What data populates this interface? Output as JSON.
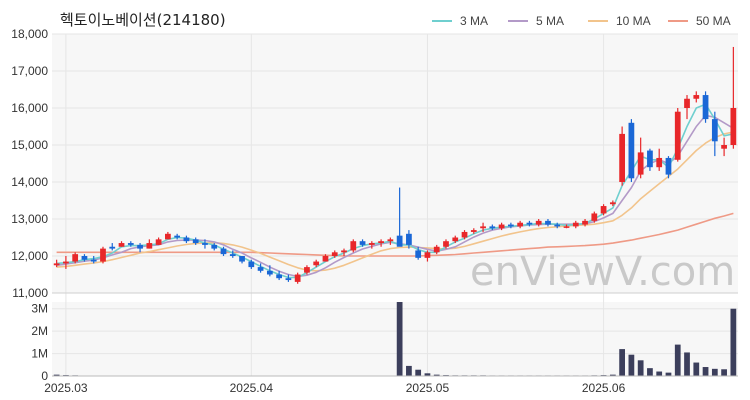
{
  "chart_data": {
    "type": "candlestick",
    "title": "헥토이노베이션(214180)",
    "watermark": "enViewV.com",
    "price_axis": {
      "ylim": [
        11000,
        18000
      ],
      "ticks": [
        "11,000",
        "12,000",
        "13,000",
        "14,000",
        "15,000",
        "16,000",
        "17,000",
        "18,000"
      ]
    },
    "volume_axis": {
      "ylim": [
        0,
        3300000
      ],
      "ticks": [
        "0",
        "1M",
        "2M",
        "3M"
      ]
    },
    "x_ticks": [
      {
        "label": "2025.03",
        "index": 1
      },
      {
        "label": "2025.04",
        "index": 21
      },
      {
        "label": "2025.05",
        "index": 40
      },
      {
        "label": "2025.06",
        "index": 59
      }
    ],
    "legend": [
      {
        "name": "3 MA",
        "color": "#6fcfcf"
      },
      {
        "name": "5 MA",
        "color": "#b39ac8"
      },
      {
        "name": "10 MA",
        "color": "#f2c48c"
      },
      {
        "name": "50 MA",
        "color": "#ef9a86"
      }
    ],
    "colors": {
      "up": "#e8272a",
      "down": "#1a67d6",
      "volume": "#3c3f5c",
      "grid": "#e6e6e6",
      "plot_bg": "#f7f7f7"
    },
    "candles": [
      [
        11750,
        11900,
        11700,
        11800
      ],
      [
        11800,
        12000,
        11650,
        11850
      ],
      [
        11850,
        12100,
        11800,
        12050
      ],
      [
        12000,
        12050,
        11850,
        11900
      ],
      [
        11900,
        12000,
        11800,
        11850
      ],
      [
        11850,
        12250,
        11800,
        12200
      ],
      [
        12250,
        12350,
        12150,
        12200
      ],
      [
        12250,
        12400,
        12250,
        12350
      ],
      [
        12350,
        12400,
        12250,
        12300
      ],
      [
        12300,
        12350,
        12100,
        12200
      ],
      [
        12200,
        12450,
        12200,
        12350
      ],
      [
        12300,
        12500,
        12300,
        12450
      ],
      [
        12450,
        12650,
        12450,
        12600
      ],
      [
        12550,
        12600,
        12450,
        12500
      ],
      [
        12500,
        12550,
        12350,
        12400
      ],
      [
        12450,
        12500,
        12300,
        12350
      ],
      [
        12350,
        12450,
        12200,
        12300
      ],
      [
        12300,
        12350,
        12150,
        12200
      ],
      [
        12200,
        12250,
        12000,
        12050
      ],
      [
        12050,
        12150,
        11950,
        12000
      ],
      [
        12000,
        12000,
        11800,
        11850
      ],
      [
        11850,
        11900,
        11650,
        11700
      ],
      [
        11700,
        11800,
        11550,
        11600
      ],
      [
        11600,
        11750,
        11450,
        11500
      ],
      [
        11500,
        11600,
        11350,
        11400
      ],
      [
        11400,
        11500,
        11300,
        11350
      ],
      [
        11300,
        11550,
        11250,
        11500
      ],
      [
        11550,
        11750,
        11500,
        11700
      ],
      [
        11750,
        11900,
        11700,
        11850
      ],
      [
        11850,
        12050,
        11850,
        12000
      ],
      [
        12000,
        12150,
        11950,
        12100
      ],
      [
        12100,
        12200,
        12000,
        12150
      ],
      [
        12150,
        12450,
        12100,
        12400
      ],
      [
        12400,
        12450,
        12250,
        12300
      ],
      [
        12300,
        12400,
        12200,
        12350
      ],
      [
        12350,
        12450,
        12250,
        12400
      ],
      [
        12400,
        12500,
        12300,
        12450
      ],
      [
        12550,
        13850,
        12300,
        12250
      ],
      [
        12600,
        12700,
        12200,
        12300
      ],
      [
        12150,
        12250,
        11900,
        11950
      ],
      [
        11950,
        12150,
        11850,
        12100
      ],
      [
        12100,
        12300,
        12050,
        12250
      ],
      [
        12250,
        12450,
        12200,
        12400
      ],
      [
        12400,
        12550,
        12350,
        12500
      ],
      [
        12500,
        12700,
        12450,
        12650
      ],
      [
        12650,
        12750,
        12600,
        12700
      ],
      [
        12750,
        12900,
        12650,
        12800
      ],
      [
        12800,
        12850,
        12700,
        12750
      ],
      [
        12750,
        12900,
        12700,
        12850
      ],
      [
        12850,
        12900,
        12750,
        12800
      ],
      [
        12800,
        12950,
        12750,
        12900
      ],
      [
        12900,
        12950,
        12800,
        12850
      ],
      [
        12850,
        13000,
        12800,
        12950
      ],
      [
        12950,
        13000,
        12800,
        12850
      ],
      [
        12850,
        12900,
        12750,
        12800
      ],
      [
        12800,
        12850,
        12750,
        12800
      ],
      [
        12800,
        12950,
        12750,
        12900
      ],
      [
        12850,
        13000,
        12800,
        12950
      ],
      [
        12950,
        13200,
        12900,
        13150
      ],
      [
        13150,
        13400,
        13100,
        13350
      ],
      [
        13400,
        13500,
        13350,
        13450
      ],
      [
        14000,
        15500,
        13900,
        15300
      ],
      [
        15600,
        15700,
        14000,
        14100
      ],
      [
        14200,
        15200,
        14100,
        14800
      ],
      [
        14850,
        14900,
        14300,
        14400
      ],
      [
        14400,
        14900,
        14300,
        14650
      ],
      [
        14650,
        14700,
        14100,
        14200
      ],
      [
        14600,
        16000,
        14550,
        15900
      ],
      [
        16000,
        16350,
        15700,
        16250
      ],
      [
        16250,
        16450,
        16150,
        16350
      ],
      [
        16350,
        16450,
        15600,
        15700
      ],
      [
        15700,
        15900,
        14700,
        15100
      ],
      [
        14900,
        15200,
        14700,
        15000
      ],
      [
        15000,
        17650,
        14900,
        16000
      ]
    ],
    "ma3": [
      11800,
      11820,
      11850,
      11900,
      11930,
      11980,
      12080,
      12250,
      12280,
      12280,
      12300,
      12330,
      12450,
      12500,
      12480,
      12430,
      12350,
      12300,
      12180,
      12080,
      11970,
      11850,
      11720,
      11600,
      11500,
      11420,
      11420,
      11550,
      11700,
      11850,
      11980,
      12080,
      12200,
      12280,
      12330,
      12350,
      12400,
      12300,
      12300,
      12170,
      12100,
      12100,
      12250,
      12380,
      12480,
      12600,
      12700,
      12750,
      12780,
      12800,
      12830,
      12850,
      12880,
      12870,
      12860,
      12830,
      12850,
      12880,
      13000,
      13150,
      13300,
      13900,
      14300,
      14700,
      14600,
      14600,
      14400,
      14900,
      15500,
      16000,
      16100,
      15700,
      15250,
      15300
    ],
    "ma5": [
      11750,
      11780,
      11820,
      11860,
      11890,
      11950,
      12030,
      12100,
      12200,
      12250,
      12280,
      12300,
      12380,
      12420,
      12430,
      12430,
      12420,
      12380,
      12300,
      12180,
      12080,
      11950,
      11830,
      11700,
      11590,
      11500,
      11450,
      11480,
      11560,
      11680,
      11830,
      11960,
      12080,
      12190,
      12260,
      12330,
      12370,
      12330,
      12300,
      12240,
      12180,
      12130,
      12180,
      12250,
      12380,
      12510,
      12620,
      12700,
      12750,
      12790,
      12810,
      12840,
      12850,
      12860,
      12860,
      12860,
      12860,
      12870,
      12930,
      13030,
      13150,
      13500,
      13850,
      14300,
      14500,
      14600,
      14500,
      14700,
      15100,
      15500,
      15800,
      15750,
      15600,
      15450
    ],
    "ma10": [
      11700,
      11720,
      11750,
      11780,
      11810,
      11850,
      11900,
      11960,
      12020,
      12080,
      12120,
      12170,
      12220,
      12270,
      12310,
      12340,
      12350,
      12360,
      12340,
      12300,
      12240,
      12160,
      12070,
      11970,
      11870,
      11770,
      11680,
      11620,
      11600,
      11620,
      11670,
      11750,
      11850,
      11950,
      12050,
      12140,
      12200,
      12230,
      12240,
      12230,
      12220,
      12200,
      12190,
      12210,
      12260,
      12330,
      12400,
      12470,
      12540,
      12600,
      12650,
      12700,
      12740,
      12770,
      12790,
      12810,
      12830,
      12840,
      12860,
      12900,
      12950,
      13100,
      13300,
      13550,
      13750,
      13950,
      14150,
      14350,
      14600,
      14850,
      15050,
      15200,
      15300,
      15350
    ],
    "ma50": [
      12100,
      12100,
      12100,
      12100,
      12100,
      12100,
      12100,
      12100,
      12100,
      12100,
      12100,
      12100,
      12100,
      12100,
      12100,
      12100,
      12100,
      12100,
      12100,
      12100,
      12100,
      12100,
      12090,
      12080,
      12070,
      12060,
      12050,
      12040,
      12030,
      12020,
      12010,
      12000,
      12000,
      12000,
      12000,
      12000,
      12000,
      12000,
      12000,
      12000,
      12010,
      12020,
      12030,
      12040,
      12060,
      12080,
      12100,
      12120,
      12140,
      12160,
      12180,
      12200,
      12220,
      12240,
      12250,
      12260,
      12270,
      12280,
      12300,
      12320,
      12350,
      12390,
      12430,
      12480,
      12530,
      12580,
      12640,
      12700,
      12780,
      12860,
      12940,
      13020,
      13080,
      13150
    ],
    "volume": [
      60000,
      40000,
      30000,
      20000,
      20000,
      20000,
      15000,
      15000,
      15000,
      15000,
      15000,
      15000,
      15000,
      15000,
      15000,
      15000,
      15000,
      15000,
      15000,
      15000,
      15000,
      15000,
      15000,
      15000,
      15000,
      15000,
      15000,
      15000,
      15000,
      15000,
      15000,
      15000,
      15000,
      15000,
      15000,
      15000,
      15000,
      3300000,
      450000,
      280000,
      120000,
      60000,
      40000,
      30000,
      30000,
      30000,
      30000,
      25000,
      25000,
      25000,
      25000,
      25000,
      25000,
      25000,
      25000,
      25000,
      25000,
      25000,
      30000,
      40000,
      60000,
      1200000,
      950000,
      700000,
      350000,
      200000,
      150000,
      1400000,
      1050000,
      600000,
      400000,
      320000,
      300000,
      3000000
    ]
  }
}
